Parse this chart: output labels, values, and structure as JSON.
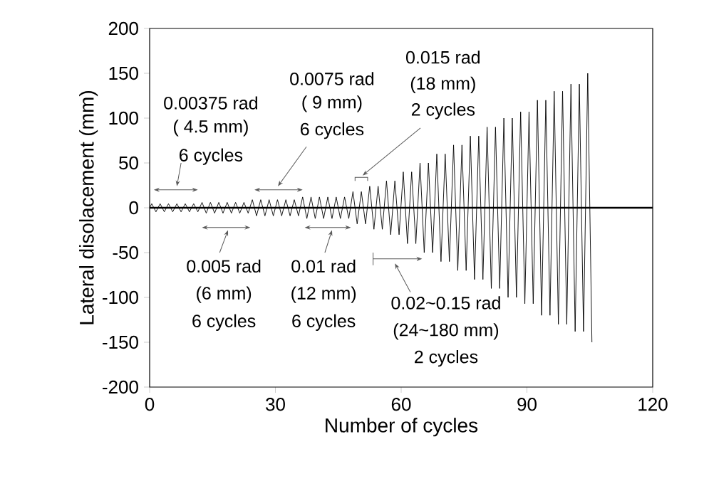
{
  "chart_data": {
    "type": "line",
    "xlabel": "Number of cycles",
    "ylabel": "Lateral disolacement (mm)",
    "x": [
      0,
      0.5,
      1.5,
      2.5,
      3.5,
      4.5,
      5.5,
      6.5,
      7.5,
      8.5,
      9.5,
      10.5,
      11.5,
      12.5,
      13.5,
      14.5,
      15.5,
      16.5,
      17.5,
      18.5,
      19.5,
      20.5,
      21.5,
      22.5,
      23.5,
      24.5,
      25.5,
      26.5,
      27.5,
      28.5,
      29.5,
      30.5,
      31.5,
      32.5,
      33.5,
      34.5,
      35.5,
      36.5,
      37.5,
      38.5,
      39.5,
      40.5,
      41.5,
      42.5,
      43.5,
      44.5,
      45.5,
      46.5,
      47.5,
      48.5,
      49.5,
      50.5,
      51.5,
      52.5,
      53.5,
      54.5,
      55.5,
      56.5,
      57.5,
      58.5,
      59.5,
      60.5,
      61.5,
      62.5,
      63.5,
      64.5,
      65.5,
      66.5,
      67.5,
      68.5,
      69.5,
      70.5,
      71.5,
      72.5,
      73.5,
      74.5,
      75.5,
      76.5,
      77.5,
      78.5,
      79.5,
      80.5,
      81.5,
      82.5,
      83.5,
      84.5,
      85.5,
      86.5,
      87.5,
      88.5,
      89.5,
      90.5,
      91.5,
      92.5,
      93.5,
      94.5,
      95.5,
      96.5,
      97.5,
      98.5,
      99.5,
      100.5,
      101.5,
      102.5,
      103.5,
      104.5,
      105.5
    ],
    "series": [
      {
        "color": "#000000",
        "values": [
          0,
          4.5,
          -4.5,
          4.5,
          -4.5,
          4.5,
          -4.5,
          4.5,
          -4.5,
          4.5,
          -4.5,
          4.5,
          -4.5,
          6,
          -6,
          6,
          -6,
          6,
          -6,
          6,
          -6,
          6,
          -6,
          6,
          -6,
          9,
          -9,
          9,
          -9,
          9,
          -9,
          9,
          -9,
          9,
          -9,
          9,
          -9,
          12,
          -12,
          12,
          -12,
          12,
          -12,
          12,
          -12,
          12,
          -12,
          12,
          -12,
          18,
          -18,
          18,
          -18,
          24,
          -24,
          24,
          -24,
          30,
          -30,
          30,
          -30,
          40,
          -40,
          40,
          -40,
          50,
          -50,
          50,
          -50,
          60,
          -60,
          60,
          -60,
          70,
          -70,
          70,
          -70,
          80,
          -80,
          80,
          -80,
          90,
          -90,
          90,
          -90,
          100,
          -100,
          100,
          -100,
          107,
          -107,
          107,
          -107,
          120,
          -120,
          120,
          -120,
          130,
          -130,
          130,
          -130,
          138,
          -138,
          138,
          -138,
          150,
          -150
        ]
      }
    ],
    "xlim": [
      0,
      120
    ],
    "xticks": [
      0,
      30,
      60,
      90,
      120
    ],
    "ylim": [
      -200,
      200
    ],
    "yticks": [
      -200,
      -150,
      -100,
      -50,
      0,
      50,
      100,
      150,
      200
    ],
    "ref_lines": [
      {
        "axis": "y",
        "value": 0,
        "color": "#000000"
      }
    ],
    "marker": "none",
    "line_style": "solid",
    "grid": false,
    "annotations": [
      "0.00375 rad",
      "( 4.5 mm)",
      "6 cycles",
      "0.0075 rad",
      "( 9 mm)",
      "6 cycles",
      "0.015 rad",
      "(18 mm)",
      "2 cycles",
      "0.005 rad",
      "(6 mm)",
      "6 cycles",
      "0.01 rad",
      "(12 mm)",
      "6 cycles",
      "0.02~0.15 rad",
      "(24~180 mm)",
      "2 cycles"
    ]
  }
}
